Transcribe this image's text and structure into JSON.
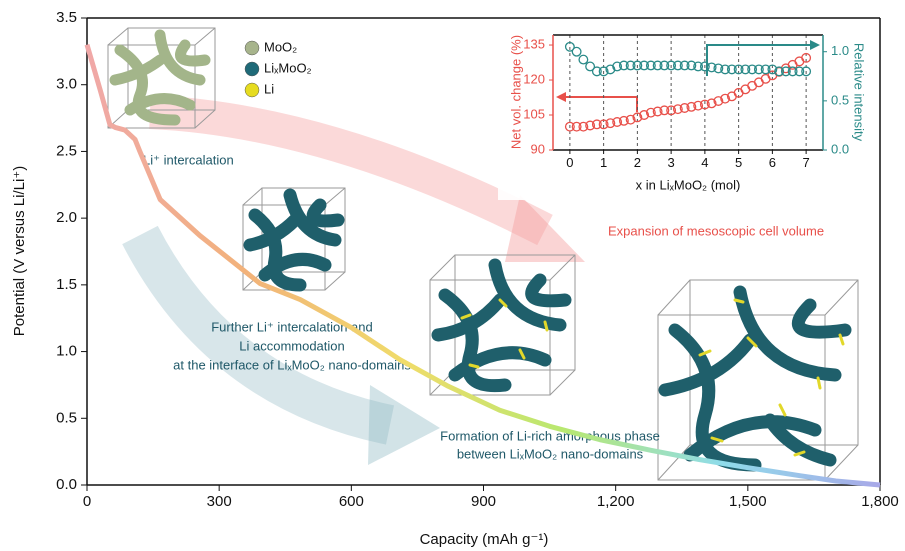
{
  "chart_data": [
    {
      "type": "line",
      "x_label": "Capacity (mAh g⁻¹)",
      "y_label": "Potential (V versus Li/Li⁺)",
      "x": [
        0,
        30,
        52,
        64,
        86,
        109,
        120,
        166,
        256,
        393,
        484,
        600,
        710,
        820,
        937,
        1050,
        1164,
        1280,
        1391,
        1500,
        1618,
        1700,
        1800
      ],
      "values": [
        3.3,
        2.96,
        2.7,
        2.68,
        2.66,
        2.59,
        2.5,
        2.14,
        1.87,
        1.51,
        1.39,
        1.18,
        0.94,
        0.74,
        0.56,
        0.44,
        0.34,
        0.26,
        0.19,
        0.13,
        0.07,
        0.03,
        0.0
      ],
      "colors": [
        "#f0a8a8",
        "#f2b27a",
        "#f0dc6a",
        "#b8e870",
        "#8fdcea",
        "#a8a8e8"
      ],
      "xlim": [
        0,
        1800
      ],
      "ylim": [
        0,
        3.5
      ],
      "xticks": [
        0,
        300,
        600,
        900,
        {
          "value": 1200,
          "label": "1,200"
        },
        {
          "value": 1500,
          "label": "1,500"
        },
        {
          "value": 1800,
          "label": "1,800"
        }
      ],
      "yticks": [
        {
          "value": 0,
          "label": "0.0"
        },
        0.5,
        {
          "value": 1,
          "label": "1.0"
        },
        1.5,
        {
          "value": 2,
          "label": "2.0"
        },
        2.5,
        {
          "value": 3,
          "label": "3.0"
        },
        3.5
      ],
      "legend": [
        {
          "label": "MoO₂",
          "color": "#a7b48c"
        },
        {
          "label": "LiₓMoO₂",
          "color": "#1f6a78"
        },
        {
          "label": "Li",
          "color": "#e6dc20"
        }
      ],
      "annotations": [
        "Li⁺ intercalation",
        "Further Li⁺ intercalation and",
        "Li accommodation",
        "at the interface of LiₓMoO₂ nano-domains",
        "Expansion of mesoscopic cell volume",
        "Formation of Li-rich amorphous phase",
        "between LiₓMoO₂ nano-domains"
      ]
    },
    {
      "type": "scatter",
      "x_label": "x in LiₓMoO₂ (mol)",
      "x": [
        0,
        0.2,
        0.4,
        0.6,
        0.8,
        1.0,
        1.2,
        1.4,
        1.6,
        1.8,
        2.0,
        2.2,
        2.4,
        2.6,
        2.8,
        3.0,
        3.2,
        3.4,
        3.6,
        3.8,
        4.0,
        4.2,
        4.4,
        4.6,
        4.8,
        5.0,
        5.2,
        5.4,
        5.6,
        5.8,
        6.0,
        6.2,
        6.4,
        6.6,
        6.8,
        7.0
      ],
      "series": [
        {
          "name": "Net vol. change (%)",
          "color": "#e8504a",
          "values": [
            100,
            100,
            100,
            100.5,
            101,
            101,
            101.5,
            102,
            102.5,
            103,
            104,
            105,
            106,
            106.5,
            107,
            107,
            107.5,
            108,
            108.5,
            109,
            109.5,
            110,
            111,
            112,
            113,
            114.5,
            116,
            117.5,
            119,
            120.5,
            122,
            123.5,
            125,
            126.5,
            128,
            129.5
          ]
        },
        {
          "name": "Relative intensity",
          "color": "#2a8a88",
          "axis": "y2",
          "values": [
            1.05,
            1.0,
            0.92,
            0.85,
            0.8,
            0.8,
            0.82,
            0.85,
            0.86,
            0.86,
            0.86,
            0.86,
            0.86,
            0.86,
            0.86,
            0.86,
            0.86,
            0.86,
            0.86,
            0.85,
            0.85,
            0.84,
            0.83,
            0.82,
            0.82,
            0.82,
            0.82,
            0.82,
            0.82,
            0.82,
            0.82,
            0.8,
            0.8,
            0.8,
            0.8,
            0.8
          ]
        }
      ],
      "xlim": [
        -0.5,
        7.5
      ],
      "ylim": [
        90,
        139.3
      ],
      "y2lim": [
        0,
        1.17
      ],
      "xticks": [
        0,
        1,
        2,
        3,
        4,
        5,
        6,
        7
      ],
      "yticks": [
        90,
        105,
        120,
        135
      ],
      "y2ticks": [
        {
          "value": 0,
          "label": "0.0"
        },
        0.5,
        {
          "value": 1,
          "label": "1.0"
        }
      ],
      "grid": true
    }
  ]
}
